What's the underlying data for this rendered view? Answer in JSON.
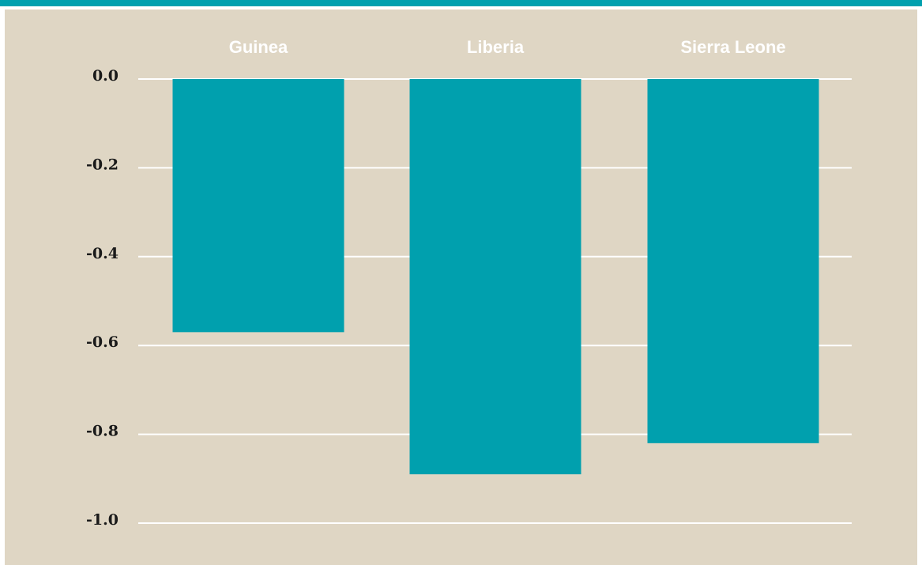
{
  "colors": {
    "accent": "#00a0ae",
    "panel_background": "#dfd6c4",
    "gridlines": "#ffffff",
    "category_label": "#ffffff"
  },
  "chart_data": {
    "type": "bar",
    "categories": [
      "Guinea",
      "Liberia",
      "Sierra Leone"
    ],
    "values": [
      -0.57,
      -0.89,
      -0.82
    ],
    "ylim": [
      -1.0,
      0.0
    ],
    "yticks": [
      0.0,
      -0.2,
      -0.4,
      -0.6,
      -0.8,
      -1.0
    ],
    "ytick_labels": [
      "0.0",
      "-0.2",
      "-0.4",
      "-0.6",
      "-0.8",
      "-1.0"
    ],
    "category_label_position": "top",
    "grid": true,
    "legend": "none"
  }
}
